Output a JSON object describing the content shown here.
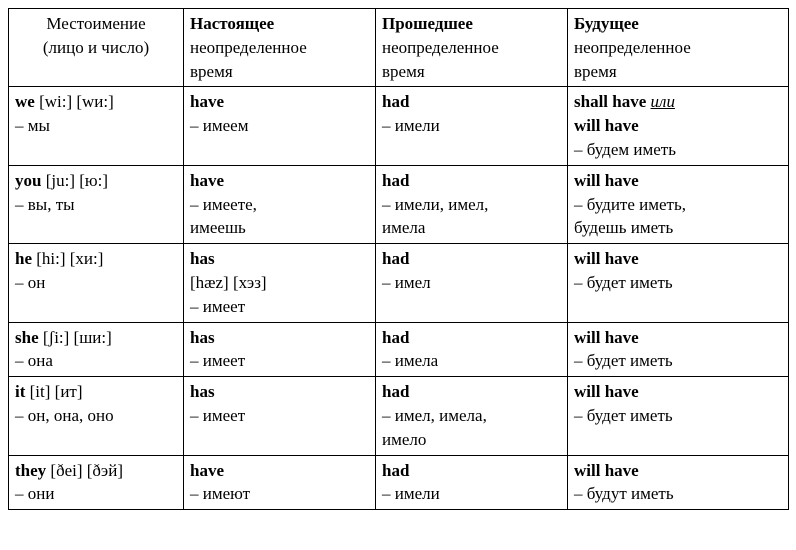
{
  "table": {
    "header": {
      "col0": {
        "line1": "Местоимение",
        "line2": "(лицо и число)"
      },
      "col1": {
        "bold": "Настоящее",
        "line2": "неопределенное",
        "line3": "время"
      },
      "col2": {
        "bold": "Прошедшее",
        "line2": "неопределенное",
        "line3": "время"
      },
      "col3": {
        "bold": "Будущее",
        "line2": "неопределенное",
        "line3": "время"
      }
    },
    "rows": [
      {
        "pronoun": {
          "bold": "we",
          "transcript": " [wi:] [wи:]",
          "ru": "– мы"
        },
        "present": {
          "bold": "have",
          "ru": "– имеем"
        },
        "past": {
          "bold": "had",
          "ru": "– имели"
        },
        "future": {
          "bold1": "shall have",
          "alt": "или",
          "bold2": "will have",
          "ru": "– будем иметь"
        }
      },
      {
        "pronoun": {
          "bold": "you",
          "transcript": " [ju:] [ю:]",
          "ru": "– вы, ты"
        },
        "present": {
          "bold": "have",
          "ru": "– имеете,",
          "ru2": "имеешь"
        },
        "past": {
          "bold": "had",
          "ru": "– имели, имел,",
          "ru2": "имела"
        },
        "future": {
          "bold1": "will have",
          "ru": "– будите иметь,",
          "ru2": "будешь иметь"
        }
      },
      {
        "pronoun": {
          "bold": "he",
          "transcript": " [hi:] [хи:]",
          "ru": "– он"
        },
        "present": {
          "bold": "has",
          "extra": "[hæz] [хэз]",
          "ru": "– имеет"
        },
        "past": {
          "bold": "had",
          "ru": "– имел"
        },
        "future": {
          "bold1": "will have",
          "ru": "– будет иметь"
        }
      },
      {
        "pronoun": {
          "bold": "she",
          "transcript": " [ʃi:] [ши:]",
          "ru": "– она"
        },
        "present": {
          "bold": "has",
          "ru": "– имеет"
        },
        "past": {
          "bold": "had",
          "ru": "– имела"
        },
        "future": {
          "bold1": "will have",
          "ru": "– будет иметь"
        }
      },
      {
        "pronoun": {
          "bold": "it",
          "transcript": " [it] [ит]",
          "ru": "– он, она, оно"
        },
        "present": {
          "bold": "has",
          "ru": "– имеет"
        },
        "past": {
          "bold": "had",
          "ru": "– имел, имела,",
          "ru2": "имело"
        },
        "future": {
          "bold1": "will have",
          "ru": "– будет иметь"
        }
      },
      {
        "pronoun": {
          "bold": "they",
          "transcript": " [ðei] [ðэй]",
          "ru": "– они"
        },
        "present": {
          "bold": "have",
          "ru": "– имеют"
        },
        "past": {
          "bold": "had",
          "ru": "– имели"
        },
        "future": {
          "bold1": "will have",
          "ru": "– будут иметь"
        }
      }
    ]
  },
  "style": {
    "font_family": "Times New Roman",
    "font_size_pt": 13,
    "border_color": "#000000",
    "background": "#ffffff",
    "text_color": "#000000"
  }
}
